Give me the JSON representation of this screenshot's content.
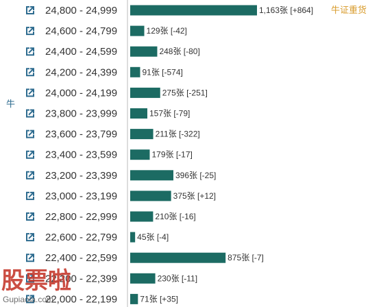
{
  "side_label": "牛",
  "badge": "牛证重货",
  "watermark": {
    "main": "股票啦",
    "sub": "Gupiaola.com"
  },
  "colors": {
    "bar": "#1c6b63",
    "icon": "#2d6b8f",
    "badge": "#d89b2b",
    "axis": "#bbbbbb"
  },
  "chart_data": {
    "type": "bar",
    "orientation": "horizontal",
    "unit_suffix": "张",
    "categories": [
      "24,800 - 24,999",
      "24,600 - 24,799",
      "24,400 - 24,599",
      "24,200 - 24,399",
      "24,000 - 24,199",
      "23,800 - 23,999",
      "23,600 - 23,799",
      "23,400 - 23,599",
      "23,200 - 23,399",
      "23,000 - 23,199",
      "22,800 - 22,999",
      "22,600 - 22,799",
      "22,400 - 22,599",
      "22,200 - 22,399",
      "22,000 - 22,199"
    ],
    "values": [
      1163,
      129,
      248,
      91,
      275,
      157,
      211,
      179,
      396,
      375,
      210,
      45,
      875,
      230,
      71
    ],
    "value_labels": [
      "1,163张 [+864]",
      "129张 [-42]",
      "248张 [-80]",
      "91张 [-574]",
      "275张 [-251]",
      "157张 [-79]",
      "211张 [-322]",
      "179张 [-17]",
      "396张 [-25]",
      "375张 [+12]",
      "210张 [-16]",
      "45张 [-4]",
      "875张 [-7]",
      "230张 [-11]",
      "71张 [+35]"
    ],
    "changes": [
      864,
      -42,
      -80,
      -574,
      -251,
      -79,
      -322,
      -17,
      -25,
      12,
      -16,
      -4,
      -7,
      -11,
      35
    ]
  }
}
